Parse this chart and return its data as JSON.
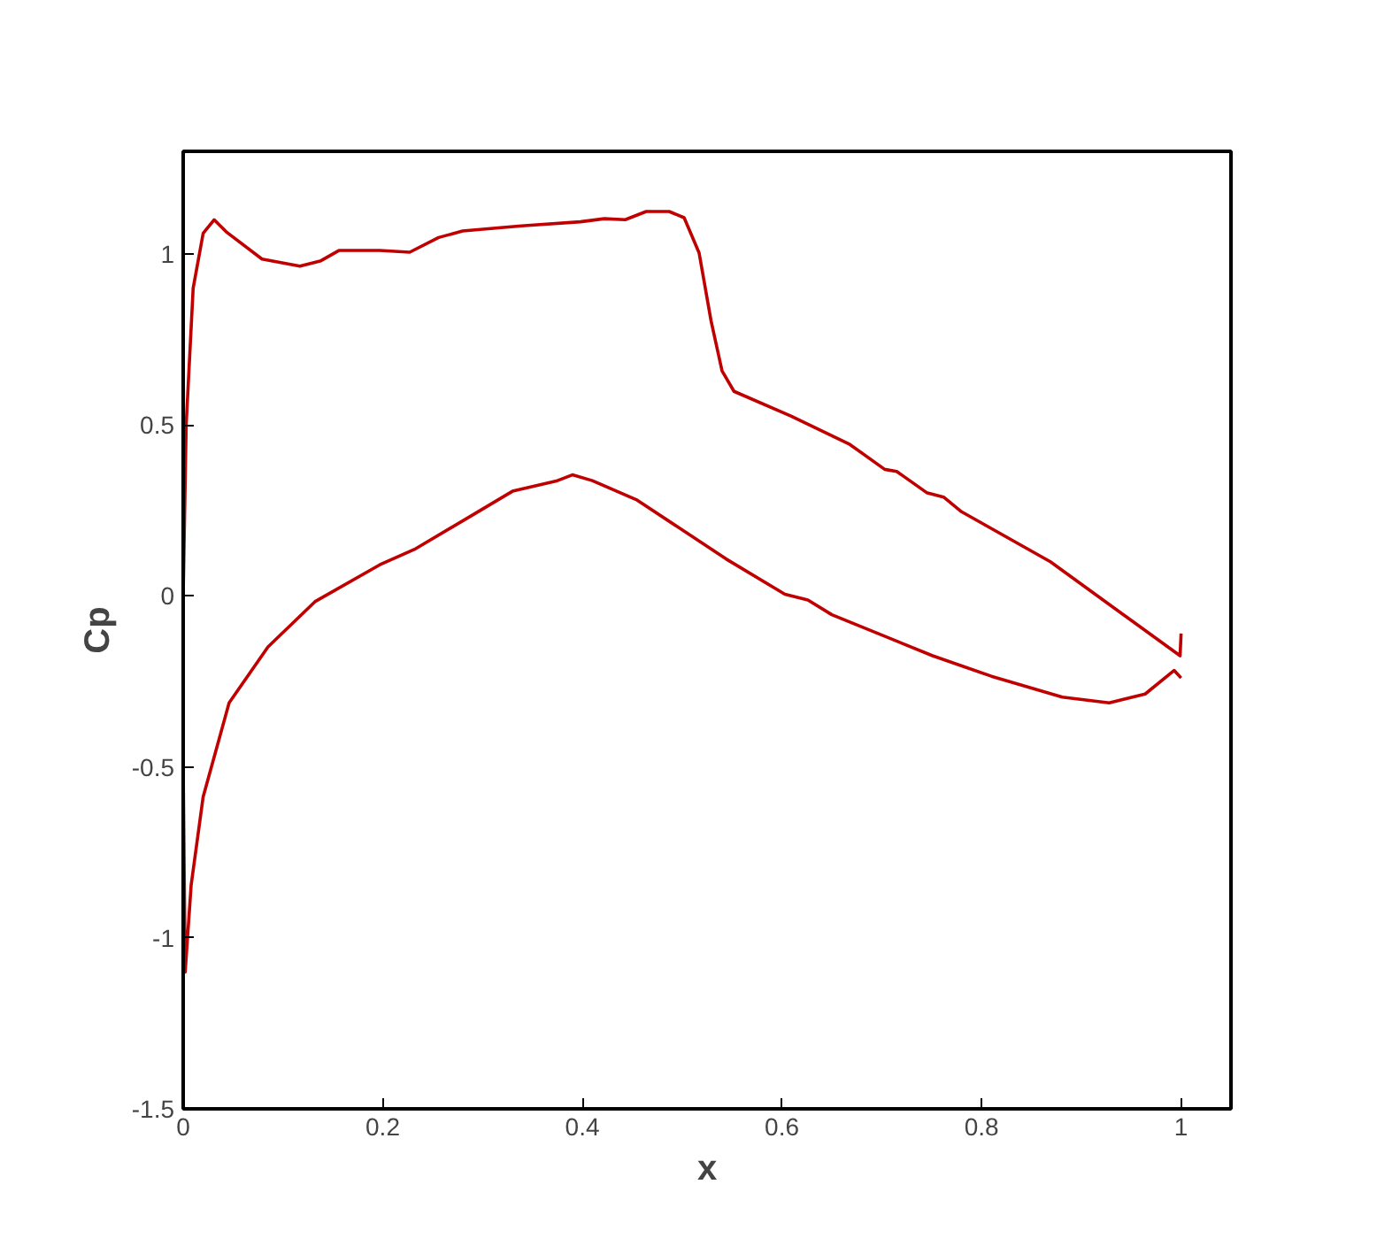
{
  "chart_data": {
    "type": "line",
    "xlabel": "x",
    "ylabel": "Cp",
    "xlim": [
      0,
      1.05
    ],
    "ylim": [
      -1.5,
      1.3
    ],
    "xticks": [
      0,
      0.2,
      0.4,
      0.6,
      0.8,
      1
    ],
    "yticks": [
      -1.5,
      -1,
      -0.5,
      0,
      0.5,
      1
    ],
    "grid": false,
    "marker": "none",
    "line_style": "solid",
    "series": [
      {
        "color": "#c00000",
        "x": [
          0,
          0.003,
          0.01,
          0.02,
          0.031,
          0.043,
          0.079,
          0.117,
          0.138,
          0.156,
          0.197,
          0.227,
          0.256,
          0.28,
          0.339,
          0.398,
          0.422,
          0.443,
          0.464,
          0.487,
          0.502,
          0.517,
          0.529,
          0.54,
          0.552,
          0.609,
          0.668,
          0.703,
          0.715,
          0.745,
          0.762,
          0.78,
          0.869,
          0.999,
          1
        ],
        "values": [
          0,
          0.5,
          0.9,
          1.06,
          1.1,
          1.065,
          0.985,
          0.964,
          0.98,
          1.01,
          1.01,
          1.005,
          1.048,
          1.067,
          1.082,
          1.094,
          1.103,
          1.1,
          1.124,
          1.124,
          1.106,
          1.003,
          0.804,
          0.658,
          0.598,
          0.526,
          0.443,
          0.37,
          0.364,
          0.302,
          0.289,
          0.246,
          0.1,
          -0.175,
          -0.11
        ]
      },
      {
        "color": "#c00000",
        "x": [
          0,
          0.002,
          0.008,
          0.02,
          0.046,
          0.085,
          0.132,
          0.197,
          0.233,
          0.292,
          0.33,
          0.375,
          0.39,
          0.41,
          0.455,
          0.544,
          0.603,
          0.626,
          0.65,
          0.751,
          0.81,
          0.881,
          0.928,
          0.964,
          0.993,
          1
        ],
        "values": [
          -0.5,
          -1.1,
          -0.845,
          -0.588,
          -0.313,
          -0.149,
          -0.017,
          0.091,
          0.138,
          0.24,
          0.306,
          0.337,
          0.354,
          0.337,
          0.28,
          0.108,
          0.005,
          -0.012,
          -0.055,
          -0.175,
          -0.235,
          -0.296,
          -0.313,
          -0.287,
          -0.218,
          -0.24
        ]
      }
    ]
  }
}
